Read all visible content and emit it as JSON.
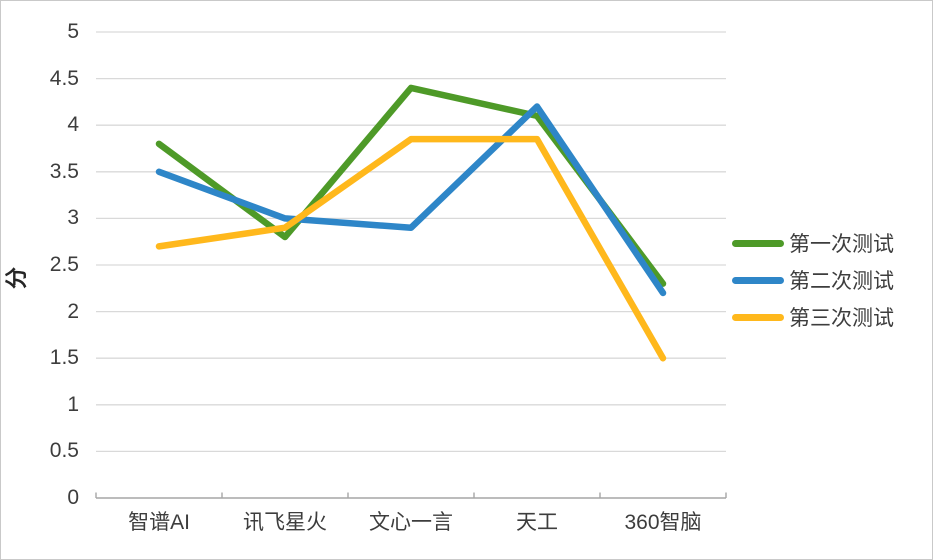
{
  "chart_data": {
    "type": "line",
    "title": "",
    "xlabel": "",
    "ylabel": "分",
    "categories": [
      "智谱AI",
      "讯飞星火",
      "文心一言",
      "天工",
      "360智脑"
    ],
    "series": [
      {
        "name": "第一次测试",
        "color": "#4E9A28",
        "values": [
          3.8,
          2.8,
          4.4,
          4.1,
          2.3
        ]
      },
      {
        "name": "第二次测试",
        "color": "#2E86C8",
        "values": [
          3.5,
          3.0,
          2.9,
          4.2,
          2.2
        ]
      },
      {
        "name": "第三次测试",
        "color": "#FFB81C",
        "values": [
          2.7,
          2.9,
          3.85,
          3.85,
          1.5
        ]
      }
    ],
    "ylim": [
      0,
      5
    ],
    "ytick_step": 0.5,
    "grid": "horizontal",
    "legend_position": "right",
    "line_width": 6.5
  },
  "colors": {
    "background": "#ffffff",
    "border": "#c9c9c9",
    "gridline": "#d9d9d9",
    "axis": "#a6a6a6",
    "text": "#3d3d3d"
  }
}
